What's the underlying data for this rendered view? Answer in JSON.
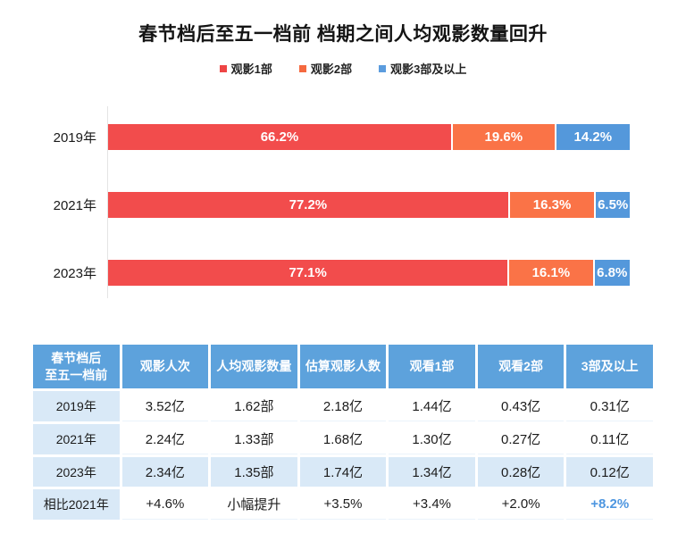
{
  "title": "春节档后至五一档前 档期之间人均观影数量回升",
  "legend": [
    {
      "label": "观影1部",
      "color": "#ee4545"
    },
    {
      "label": "观影2部",
      "color": "#f5693f"
    },
    {
      "label": "观影3部及以上",
      "color": "#5b9cde"
    }
  ],
  "chart_data": {
    "type": "bar",
    "orientation": "horizontal",
    "stacked": true,
    "unit": "%",
    "xlim": [
      0,
      100
    ],
    "legend_position": "top",
    "value_labels": "inside",
    "categories": [
      "2019年",
      "2021年",
      "2023年"
    ],
    "series": [
      {
        "name": "观影1部",
        "color": "#f24c4c",
        "values": [
          66.2,
          77.2,
          77.1
        ]
      },
      {
        "name": "观影2部",
        "color": "#fa7347",
        "values": [
          19.6,
          16.3,
          16.1
        ]
      },
      {
        "name": "观影3部及以上",
        "color": "#5498db",
        "values": [
          14.2,
          6.5,
          6.8
        ]
      }
    ]
  },
  "table": {
    "headers": [
      "春节档后\n至五一档前",
      "观影人次",
      "人均观影数量",
      "估算观影人数",
      "观看1部",
      "观看2部",
      "3部及以上"
    ],
    "rows": [
      {
        "label": "2019年",
        "values": [
          "3.52亿",
          "1.62部",
          "2.18亿",
          "1.44亿",
          "0.43亿",
          "0.31亿"
        ],
        "highlight": false,
        "accent_last": false
      },
      {
        "label": "2021年",
        "values": [
          "2.24亿",
          "1.33部",
          "1.68亿",
          "1.30亿",
          "0.27亿",
          "0.11亿"
        ],
        "highlight": false,
        "accent_last": false
      },
      {
        "label": "2023年",
        "values": [
          "2.34亿",
          "1.35部",
          "1.74亿",
          "1.34亿",
          "0.28亿",
          "0.12亿"
        ],
        "highlight": true,
        "accent_last": false
      },
      {
        "label": "相比2021年",
        "values": [
          "+4.6%",
          "小幅提升",
          "+3.5%",
          "+3.4%",
          "+2.0%",
          "+8.2%"
        ],
        "highlight": false,
        "accent_last": true
      }
    ]
  },
  "colors": {
    "header_bg": "#5da2dc",
    "light_bg": "#d9e9f7",
    "accent_text": "#4d96e0",
    "axis_line": "#e4e4e4"
  }
}
